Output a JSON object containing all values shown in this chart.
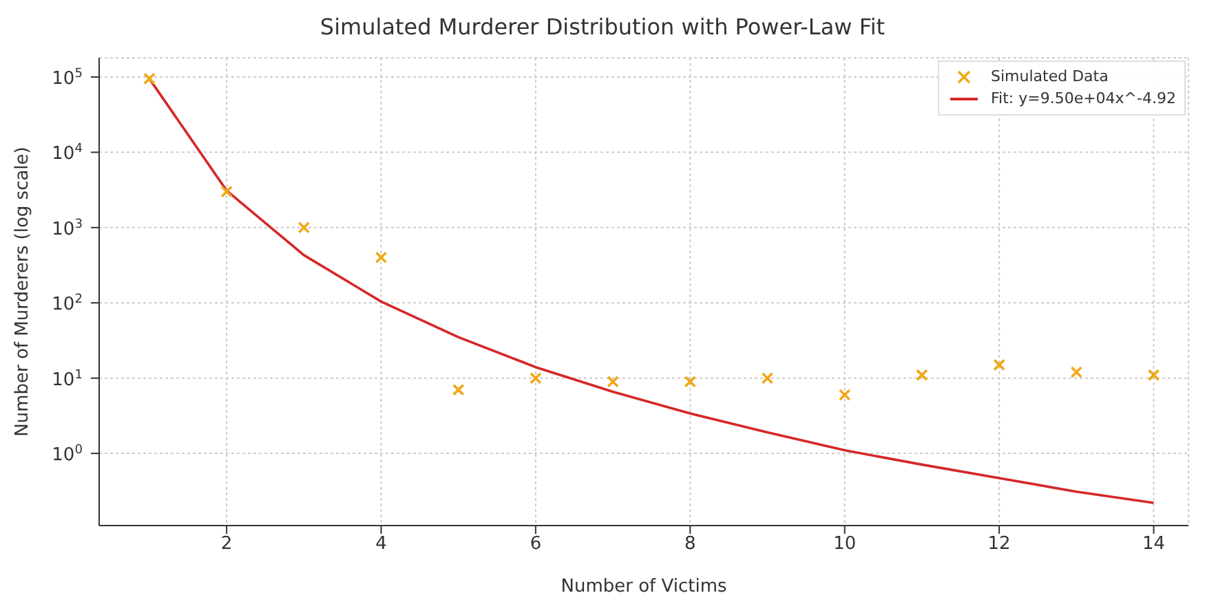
{
  "chart_data": {
    "type": "scatter",
    "title": "Simulated Murderer Distribution with Power-Law Fit",
    "xlabel": "Number of Victims",
    "ylabel": "Number of Murderers (log scale)",
    "x": [
      1,
      2,
      3,
      4,
      5,
      6,
      7,
      8,
      9,
      10,
      11,
      12,
      13,
      14
    ],
    "series": [
      {
        "name": "Simulated Data",
        "color": "#f0a818",
        "marker": "cross",
        "values": [
          95000,
          3000,
          1000,
          400,
          7,
          10,
          9,
          9,
          10,
          6,
          11,
          15,
          12,
          11
        ]
      },
      {
        "name": "Fit: y=9.50e+04x^-4.92",
        "type": "line",
        "color": "#d62728",
        "marker": "none",
        "line_style": "solid",
        "values": [
          95000,
          3100,
          430,
          104,
          35,
          14,
          6.6,
          3.4,
          1.9,
          1.1,
          0.71,
          0.47,
          0.31,
          0.22
        ]
      }
    ],
    "log": "y",
    "xlim": [
      0.35,
      14.45
    ],
    "xticks": [
      2,
      4,
      6,
      8,
      10,
      12,
      14
    ],
    "ylim": [
      0.11,
      180000
    ],
    "yticks": [
      {
        "value": 1,
        "label": "10$^{0}$"
      },
      {
        "value": 10,
        "label": "10$^{1}$"
      },
      {
        "value": 100,
        "label": "10$^{2}$"
      },
      {
        "value": 1000,
        "label": "10$^{3}$"
      },
      {
        "value": 10000,
        "label": "10$^{4}$"
      },
      {
        "value": 100000,
        "label": "10$^{5}$"
      }
    ],
    "grid": true,
    "legend": "top right"
  }
}
